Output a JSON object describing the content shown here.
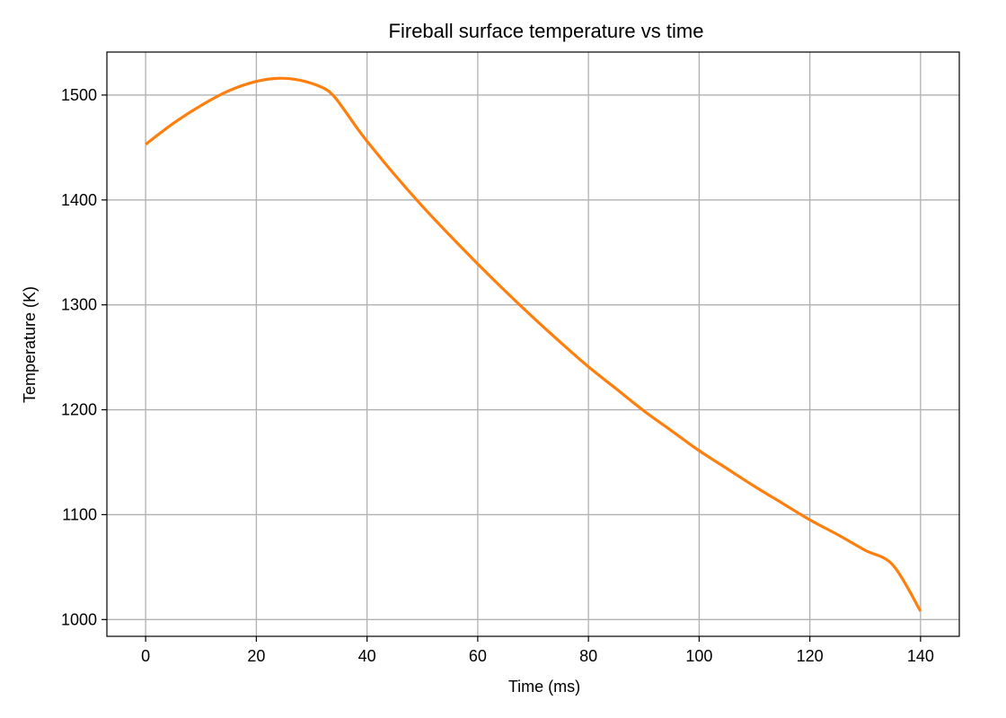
{
  "chart_data": {
    "type": "line",
    "title": "Fireball surface temperature vs time",
    "xlabel": "Time (ms)",
    "ylabel": "Temperature (K)",
    "xlim": [
      -7,
      147
    ],
    "ylim": [
      984,
      1541
    ],
    "grid": true,
    "xticks": [
      0,
      20,
      40,
      60,
      80,
      100,
      120,
      140
    ],
    "yticks": [
      1000,
      1100,
      1200,
      1300,
      1400,
      1500
    ],
    "series": [
      {
        "color": "#ff7f0e",
        "x": [
          0,
          5,
          10,
          15,
          20,
          24,
          28,
          32,
          34,
          36,
          38,
          40,
          45,
          50,
          55,
          60,
          65,
          70,
          75,
          80,
          85,
          90,
          95,
          100,
          105,
          110,
          115,
          120,
          125,
          130,
          135,
          140
        ],
        "y": [
          1453,
          1473,
          1490,
          1504,
          1513,
          1516,
          1514,
          1507,
          1499,
          1485,
          1470,
          1456,
          1424,
          1394,
          1366,
          1339,
          1313,
          1288,
          1264,
          1241,
          1220,
          1199,
          1180,
          1161,
          1144,
          1127,
          1111,
          1095,
          1081,
          1066,
          1052,
          1008
        ]
      }
    ]
  }
}
